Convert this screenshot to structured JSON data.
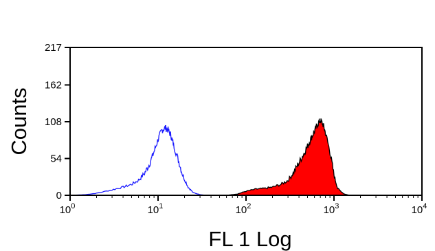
{
  "chart_data": {
    "type": "area",
    "title": "",
    "xlabel": "FL 1 Log",
    "ylabel": "Counts",
    "xscale": "log",
    "xlim": [
      1,
      10000
    ],
    "ylim": [
      0,
      217
    ],
    "x_ticks": [
      {
        "base": "10",
        "exp": "0"
      },
      {
        "base": "10",
        "exp": "1"
      },
      {
        "base": "10",
        "exp": "2"
      },
      {
        "base": "10",
        "exp": "3"
      },
      {
        "base": "10",
        "exp": "4"
      }
    ],
    "y_ticks": [
      "0",
      "54",
      "108",
      "162",
      "217"
    ],
    "grid": false,
    "legend": "none",
    "series": [
      {
        "style": "outline",
        "color": "#1a1aff",
        "x": [
          1.0,
          1.5,
          2.0,
          3.0,
          4.0,
          5.0,
          6.0,
          7.0,
          8.0,
          9.0,
          10.0,
          11.0,
          12.0,
          13.0,
          14.0,
          15.0,
          17.0,
          19.0,
          22.0,
          25.0,
          30.0,
          35.0,
          40.0,
          45.0
        ],
        "y": [
          0,
          1,
          3,
          8,
          12,
          16,
          22,
          32,
          46,
          64,
          82,
          95,
          99,
          96,
          88,
          74,
          52,
          30,
          12,
          4,
          1,
          0,
          0,
          0
        ]
      },
      {
        "style": "filled",
        "color": "#ff0000",
        "outline": "#000000",
        "x": [
          60,
          80,
          100,
          130,
          160,
          200,
          250,
          300,
          350,
          400,
          450,
          500,
          550,
          600,
          650,
          700,
          750,
          800,
          900,
          1000,
          1100,
          1300,
          1500
        ],
        "y": [
          0,
          2,
          6,
          9,
          10,
          12,
          16,
          22,
          34,
          48,
          60,
          72,
          84,
          94,
          104,
          110,
          104,
          92,
          64,
          30,
          10,
          2,
          0
        ]
      }
    ]
  }
}
